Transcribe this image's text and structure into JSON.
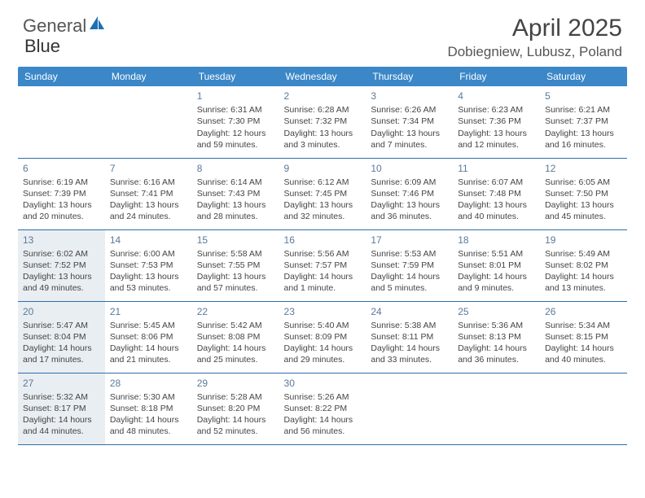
{
  "header": {
    "logo_general": "General",
    "logo_blue": "Blue",
    "month_title": "April 2025",
    "location": "Dobiegniew, Lubusz, Poland"
  },
  "colors": {
    "header_bg": "#3b87c8",
    "header_text": "#ffffff",
    "row_border": "#2f6ea8",
    "daynum_color": "#5a7a99",
    "shaded_bg": "#e9eef2",
    "logo_icon": "#1f6fb5"
  },
  "columns": [
    "Sunday",
    "Monday",
    "Tuesday",
    "Wednesday",
    "Thursday",
    "Friday",
    "Saturday"
  ],
  "weeks": [
    [
      {
        "day": "",
        "sunrise": "",
        "sunset": "",
        "daylight": ""
      },
      {
        "day": "",
        "sunrise": "",
        "sunset": "",
        "daylight": ""
      },
      {
        "day": "1",
        "sunrise": "Sunrise: 6:31 AM",
        "sunset": "Sunset: 7:30 PM",
        "daylight": "Daylight: 12 hours and 59 minutes."
      },
      {
        "day": "2",
        "sunrise": "Sunrise: 6:28 AM",
        "sunset": "Sunset: 7:32 PM",
        "daylight": "Daylight: 13 hours and 3 minutes."
      },
      {
        "day": "3",
        "sunrise": "Sunrise: 6:26 AM",
        "sunset": "Sunset: 7:34 PM",
        "daylight": "Daylight: 13 hours and 7 minutes."
      },
      {
        "day": "4",
        "sunrise": "Sunrise: 6:23 AM",
        "sunset": "Sunset: 7:36 PM",
        "daylight": "Daylight: 13 hours and 12 minutes."
      },
      {
        "day": "5",
        "sunrise": "Sunrise: 6:21 AM",
        "sunset": "Sunset: 7:37 PM",
        "daylight": "Daylight: 13 hours and 16 minutes."
      }
    ],
    [
      {
        "day": "6",
        "sunrise": "Sunrise: 6:19 AM",
        "sunset": "Sunset: 7:39 PM",
        "daylight": "Daylight: 13 hours and 20 minutes."
      },
      {
        "day": "7",
        "sunrise": "Sunrise: 6:16 AM",
        "sunset": "Sunset: 7:41 PM",
        "daylight": "Daylight: 13 hours and 24 minutes."
      },
      {
        "day": "8",
        "sunrise": "Sunrise: 6:14 AM",
        "sunset": "Sunset: 7:43 PM",
        "daylight": "Daylight: 13 hours and 28 minutes."
      },
      {
        "day": "9",
        "sunrise": "Sunrise: 6:12 AM",
        "sunset": "Sunset: 7:45 PM",
        "daylight": "Daylight: 13 hours and 32 minutes."
      },
      {
        "day": "10",
        "sunrise": "Sunrise: 6:09 AM",
        "sunset": "Sunset: 7:46 PM",
        "daylight": "Daylight: 13 hours and 36 minutes."
      },
      {
        "day": "11",
        "sunrise": "Sunrise: 6:07 AM",
        "sunset": "Sunset: 7:48 PM",
        "daylight": "Daylight: 13 hours and 40 minutes."
      },
      {
        "day": "12",
        "sunrise": "Sunrise: 6:05 AM",
        "sunset": "Sunset: 7:50 PM",
        "daylight": "Daylight: 13 hours and 45 minutes."
      }
    ],
    [
      {
        "day": "13",
        "sunrise": "Sunrise: 6:02 AM",
        "sunset": "Sunset: 7:52 PM",
        "daylight": "Daylight: 13 hours and 49 minutes.",
        "shaded": true
      },
      {
        "day": "14",
        "sunrise": "Sunrise: 6:00 AM",
        "sunset": "Sunset: 7:53 PM",
        "daylight": "Daylight: 13 hours and 53 minutes."
      },
      {
        "day": "15",
        "sunrise": "Sunrise: 5:58 AM",
        "sunset": "Sunset: 7:55 PM",
        "daylight": "Daylight: 13 hours and 57 minutes."
      },
      {
        "day": "16",
        "sunrise": "Sunrise: 5:56 AM",
        "sunset": "Sunset: 7:57 PM",
        "daylight": "Daylight: 14 hours and 1 minute."
      },
      {
        "day": "17",
        "sunrise": "Sunrise: 5:53 AM",
        "sunset": "Sunset: 7:59 PM",
        "daylight": "Daylight: 14 hours and 5 minutes."
      },
      {
        "day": "18",
        "sunrise": "Sunrise: 5:51 AM",
        "sunset": "Sunset: 8:01 PM",
        "daylight": "Daylight: 14 hours and 9 minutes."
      },
      {
        "day": "19",
        "sunrise": "Sunrise: 5:49 AM",
        "sunset": "Sunset: 8:02 PM",
        "daylight": "Daylight: 14 hours and 13 minutes."
      }
    ],
    [
      {
        "day": "20",
        "sunrise": "Sunrise: 5:47 AM",
        "sunset": "Sunset: 8:04 PM",
        "daylight": "Daylight: 14 hours and 17 minutes.",
        "shaded": true
      },
      {
        "day": "21",
        "sunrise": "Sunrise: 5:45 AM",
        "sunset": "Sunset: 8:06 PM",
        "daylight": "Daylight: 14 hours and 21 minutes."
      },
      {
        "day": "22",
        "sunrise": "Sunrise: 5:42 AM",
        "sunset": "Sunset: 8:08 PM",
        "daylight": "Daylight: 14 hours and 25 minutes."
      },
      {
        "day": "23",
        "sunrise": "Sunrise: 5:40 AM",
        "sunset": "Sunset: 8:09 PM",
        "daylight": "Daylight: 14 hours and 29 minutes."
      },
      {
        "day": "24",
        "sunrise": "Sunrise: 5:38 AM",
        "sunset": "Sunset: 8:11 PM",
        "daylight": "Daylight: 14 hours and 33 minutes."
      },
      {
        "day": "25",
        "sunrise": "Sunrise: 5:36 AM",
        "sunset": "Sunset: 8:13 PM",
        "daylight": "Daylight: 14 hours and 36 minutes."
      },
      {
        "day": "26",
        "sunrise": "Sunrise: 5:34 AM",
        "sunset": "Sunset: 8:15 PM",
        "daylight": "Daylight: 14 hours and 40 minutes."
      }
    ],
    [
      {
        "day": "27",
        "sunrise": "Sunrise: 5:32 AM",
        "sunset": "Sunset: 8:17 PM",
        "daylight": "Daylight: 14 hours and 44 minutes.",
        "shaded": true
      },
      {
        "day": "28",
        "sunrise": "Sunrise: 5:30 AM",
        "sunset": "Sunset: 8:18 PM",
        "daylight": "Daylight: 14 hours and 48 minutes."
      },
      {
        "day": "29",
        "sunrise": "Sunrise: 5:28 AM",
        "sunset": "Sunset: 8:20 PM",
        "daylight": "Daylight: 14 hours and 52 minutes."
      },
      {
        "day": "30",
        "sunrise": "Sunrise: 5:26 AM",
        "sunset": "Sunset: 8:22 PM",
        "daylight": "Daylight: 14 hours and 56 minutes."
      },
      {
        "day": "",
        "sunrise": "",
        "sunset": "",
        "daylight": ""
      },
      {
        "day": "",
        "sunrise": "",
        "sunset": "",
        "daylight": ""
      },
      {
        "day": "",
        "sunrise": "",
        "sunset": "",
        "daylight": ""
      }
    ]
  ]
}
